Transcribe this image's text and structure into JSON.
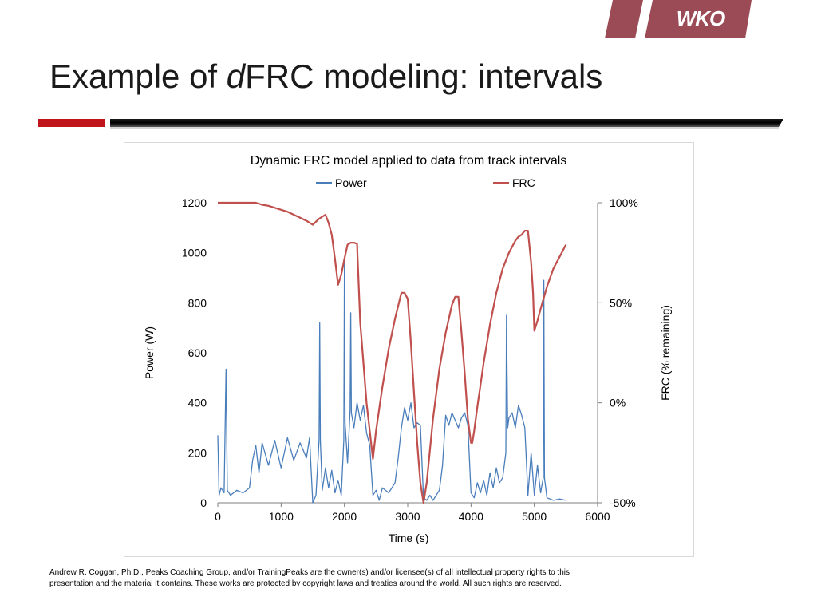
{
  "logo": {
    "text": "WKO",
    "color": "#9b4b55"
  },
  "slide": {
    "title_prefix": "Example of ",
    "title_italic": "d",
    "title_suffix": "FRC modeling: intervals"
  },
  "footer": {
    "line1": "Andrew R. Coggan, Ph.D., Peaks Coaching Group, and/or TrainingPeaks are the owner(s) and/or licensee(s) of all intellectual property rights to this",
    "line2": "presentation and the material it contains. These works are protected by copyright laws and treaties around the world. All such rights are reserved."
  },
  "chart_data": {
    "type": "line",
    "title": "Dynamic FRC model applied to data from track intervals",
    "xlabel": "Time (s)",
    "ylabel": "Power (W)",
    "y2label": "FRC (% remaining)",
    "xlim": [
      0,
      6000
    ],
    "ylim": [
      0,
      1200
    ],
    "y2lim": [
      -50,
      100
    ],
    "xticks": [
      "0",
      "1000",
      "2000",
      "3000",
      "4000",
      "5000",
      "6000"
    ],
    "yticks": [
      "0",
      "200",
      "400",
      "600",
      "800",
      "1000",
      "1200"
    ],
    "y2ticks": [
      "-50%",
      "0%",
      "50%",
      "100%"
    ],
    "legend_position": "top",
    "series": [
      {
        "name": "Power",
        "axis": "left",
        "color": "#4a7ebb",
        "x": [
          0,
          20,
          50,
          100,
          130,
          150,
          200,
          300,
          400,
          500,
          550,
          600,
          650,
          700,
          800,
          900,
          1000,
          1100,
          1200,
          1300,
          1400,
          1450,
          1500,
          1550,
          1600,
          1610,
          1620,
          1650,
          1700,
          1750,
          1800,
          1850,
          1900,
          1950,
          1990,
          2000,
          2010,
          2050,
          2090,
          2100,
          2110,
          2150,
          2200,
          2250,
          2300,
          2350,
          2400,
          2450,
          2500,
          2550,
          2600,
          2700,
          2800,
          2850,
          2900,
          2950,
          3000,
          3050,
          3100,
          3150,
          3200,
          3250,
          3300,
          3350,
          3400,
          3500,
          3550,
          3600,
          3650,
          3700,
          3750,
          3800,
          3850,
          3900,
          3950,
          4000,
          4050,
          4100,
          4150,
          4200,
          4250,
          4300,
          4350,
          4400,
          4450,
          4500,
          4550,
          4560,
          4580,
          4600,
          4650,
          4700,
          4750,
          4800,
          4850,
          4900,
          4950,
          5000,
          5050,
          5100,
          5140,
          5150,
          5160,
          5200,
          5300,
          5400,
          5500
        ],
        "y": [
          270,
          30,
          60,
          40,
          535,
          50,
          30,
          50,
          40,
          60,
          170,
          230,
          120,
          240,
          150,
          250,
          140,
          260,
          170,
          240,
          180,
          260,
          0,
          30,
          250,
          720,
          250,
          50,
          140,
          60,
          130,
          40,
          90,
          30,
          250,
          970,
          320,
          160,
          370,
          760,
          360,
          300,
          400,
          330,
          390,
          280,
          230,
          30,
          50,
          10,
          60,
          40,
          80,
          180,
          300,
          380,
          330,
          400,
          300,
          320,
          310,
          20,
          10,
          30,
          10,
          50,
          150,
          350,
          310,
          360,
          330,
          300,
          340,
          360,
          310,
          40,
          20,
          80,
          40,
          90,
          30,
          120,
          60,
          140,
          80,
          100,
          200,
          750,
          300,
          340,
          360,
          300,
          390,
          350,
          300,
          30,
          200,
          30,
          150,
          40,
          100,
          890,
          100,
          20,
          10,
          15,
          10
        ]
      },
      {
        "name": "FRC",
        "axis": "right",
        "color": "#c0504d",
        "x": [
          0,
          600,
          700,
          800,
          900,
          1000,
          1100,
          1200,
          1300,
          1400,
          1450,
          1500,
          1550,
          1600,
          1650,
          1700,
          1750,
          1800,
          1850,
          1900,
          1950,
          2000,
          2050,
          2100,
          2150,
          2200,
          2250,
          2300,
          2350,
          2400,
          2450,
          2500,
          2600,
          2700,
          2800,
          2900,
          2950,
          3000,
          3050,
          3100,
          3150,
          3200,
          3250,
          3300,
          3400,
          3500,
          3600,
          3700,
          3750,
          3800,
          3850,
          3900,
          3950,
          4000,
          4020,
          4050,
          4100,
          4200,
          4300,
          4400,
          4500,
          4600,
          4700,
          4750,
          4800,
          4850,
          4880,
          4900,
          4950,
          4980,
          5000,
          5050,
          5100,
          5200,
          5300,
          5400,
          5500
        ],
        "y": [
          100,
          100,
          99,
          98.5,
          97.5,
          96.5,
          95.5,
          94,
          92.5,
          91,
          90,
          89,
          90.5,
          92,
          93,
          94,
          90,
          84,
          72,
          59,
          64,
          72,
          79,
          80,
          80,
          79.5,
          40,
          20,
          0,
          -14,
          -28,
          -14,
          8,
          27,
          42,
          55,
          55,
          52,
          30,
          5,
          -20,
          -40,
          -50,
          -40,
          -8,
          17,
          35,
          49,
          53,
          53,
          35,
          15,
          -8,
          -20,
          -20,
          -14,
          -2,
          20,
          39,
          55,
          67,
          75,
          81,
          83,
          84,
          86,
          86,
          86,
          70,
          55,
          36,
          41,
          47,
          58,
          67,
          73,
          79
        ]
      }
    ]
  }
}
